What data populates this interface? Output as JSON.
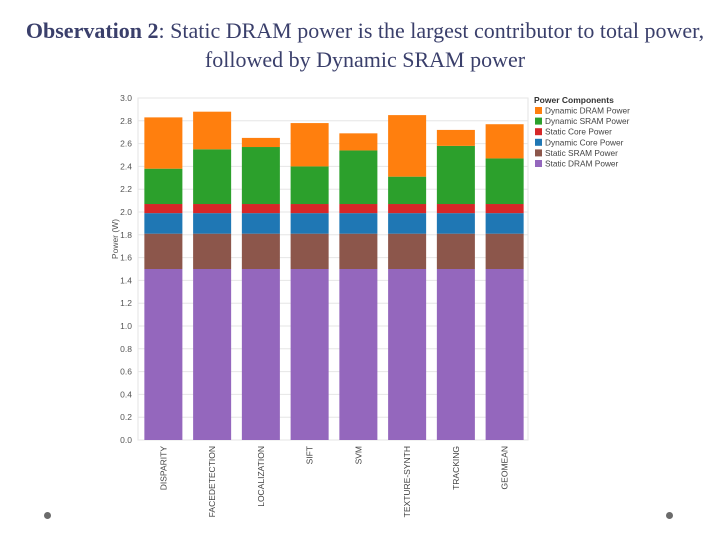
{
  "slide": {
    "title_bold": "Observation 2",
    "title_rest": ": Static DRAM power is the largest contributor to total power, followed by Dynamic SRAM power"
  },
  "chart_data": {
    "type": "stacked-bar",
    "title": "",
    "xlabel": "",
    "ylabel": "Power (W)",
    "ylim": [
      0,
      3.0
    ],
    "yticks": [
      "0.0",
      "0.2",
      "0.4",
      "0.6",
      "0.8",
      "1.0",
      "1.2",
      "1.4",
      "1.6",
      "1.8",
      "2.0",
      "2.2",
      "2.4",
      "2.6",
      "2.8",
      "3.0"
    ],
    "grid": true,
    "legend_title": "Power Components",
    "legend_position": "top-right",
    "categories": [
      "DISPARITY",
      "FACEDETECTION",
      "LOCALIZATION",
      "SIFT",
      "SVM",
      "TEXTURE-SYNTH",
      "TRACKING",
      "GEOMEAN"
    ],
    "series": [
      {
        "name": "Static DRAM Power",
        "color": "#9467bd",
        "values": [
          1.5,
          1.5,
          1.5,
          1.5,
          1.5,
          1.5,
          1.5,
          1.5
        ]
      },
      {
        "name": "Static SRAM Power",
        "color": "#8c564b",
        "values": [
          0.31,
          0.31,
          0.31,
          0.31,
          0.31,
          0.31,
          0.31,
          0.31
        ]
      },
      {
        "name": "Dynamic Core Power",
        "color": "#1f77b4",
        "values": [
          0.18,
          0.18,
          0.18,
          0.18,
          0.18,
          0.18,
          0.18,
          0.18
        ]
      },
      {
        "name": "Static Core Power",
        "color": "#d62728",
        "values": [
          0.08,
          0.08,
          0.08,
          0.08,
          0.08,
          0.08,
          0.08,
          0.08
        ]
      },
      {
        "name": "Dynamic SRAM Power",
        "color": "#2ca02c",
        "values": [
          0.31,
          0.48,
          0.5,
          0.33,
          0.47,
          0.24,
          0.51,
          0.4
        ]
      },
      {
        "name": "Dynamic DRAM Power",
        "color": "#ff7f0e",
        "values": [
          0.45,
          0.33,
          0.08,
          0.38,
          0.15,
          0.54,
          0.14,
          0.3
        ]
      }
    ],
    "legend_order": [
      "Dynamic DRAM Power",
      "Dynamic SRAM Power",
      "Static Core Power",
      "Dynamic Core Power",
      "Static SRAM Power",
      "Static DRAM Power"
    ]
  }
}
